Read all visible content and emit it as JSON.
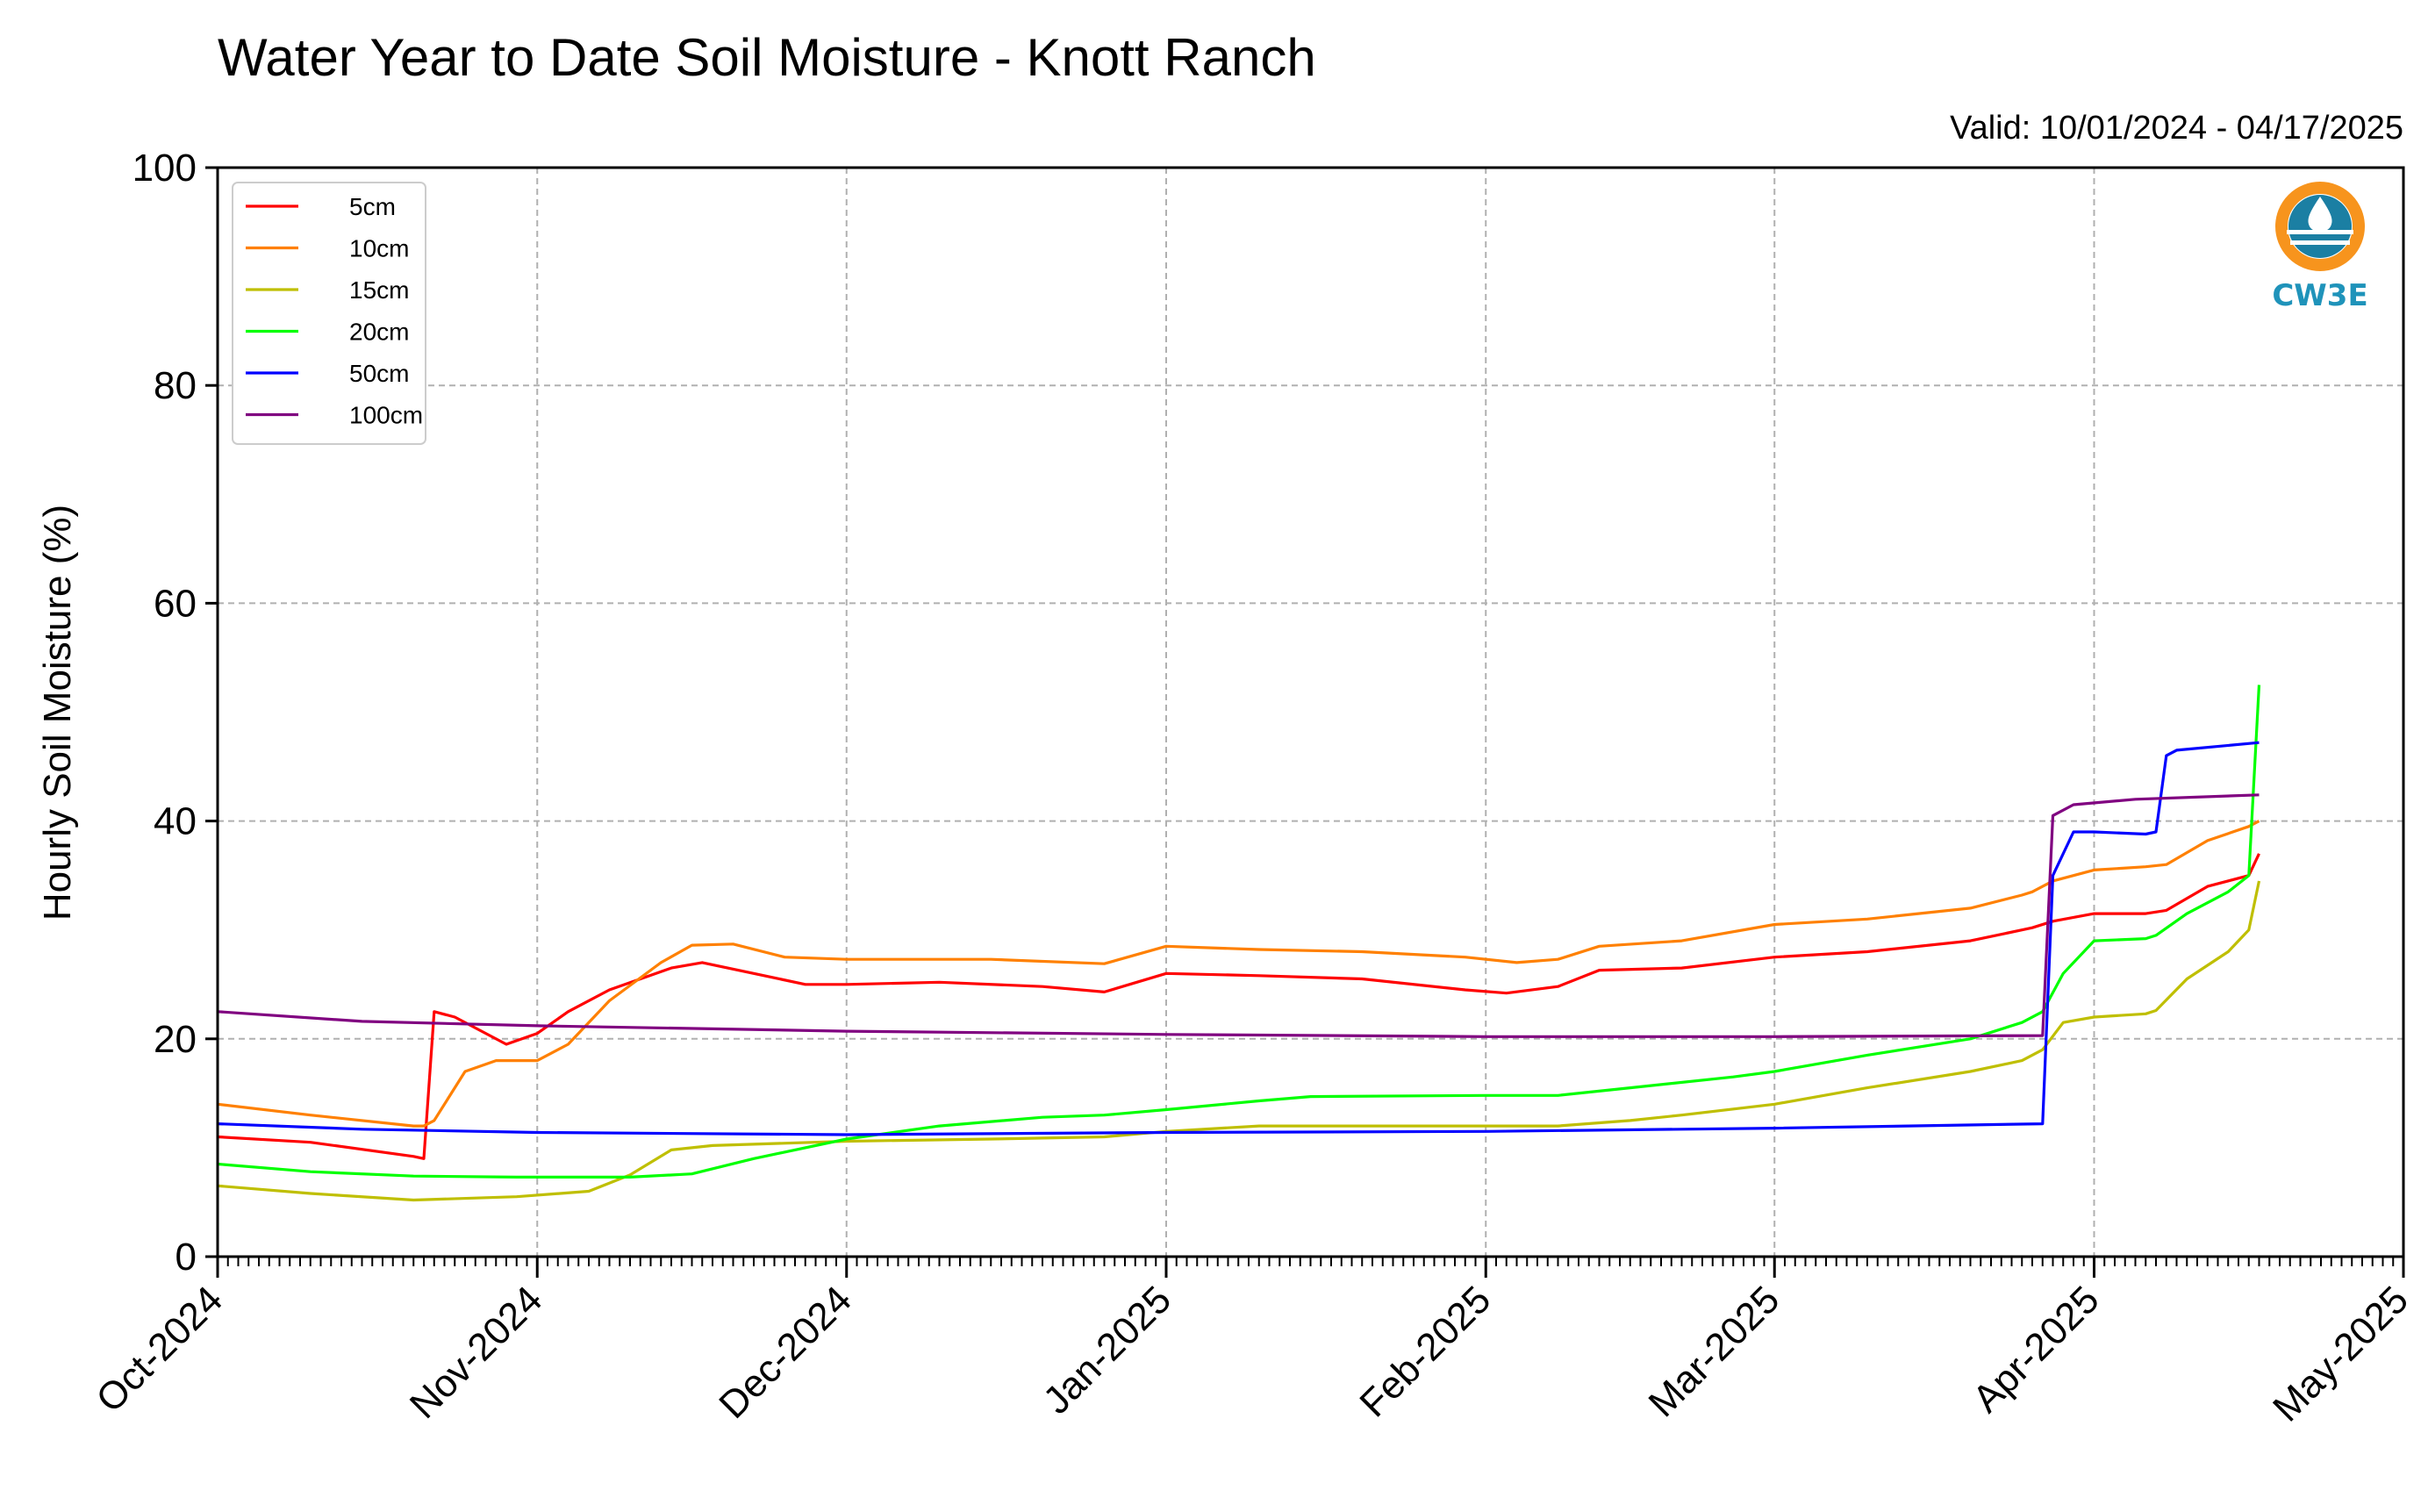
{
  "chart_data": {
    "type": "line",
    "title": "Water Year to Date Soil Moisture - Knott Ranch",
    "subtitle": "Valid: 10/01/2024 - 04/17/2025",
    "xlabel": "",
    "ylabel": "Hourly Soil Moisture (%)",
    "ylim": [
      0,
      100
    ],
    "xlim": [
      "2024-10-01",
      "2025-05-01"
    ],
    "yticks": [
      "0",
      "20",
      "40",
      "60",
      "80",
      "100"
    ],
    "xticks": [
      {
        "date": "2024-10-01",
        "label": "Oct-2024"
      },
      {
        "date": "2024-11-01",
        "label": "Nov-2024"
      },
      {
        "date": "2024-12-01",
        "label": "Dec-2024"
      },
      {
        "date": "2025-01-01",
        "label": "Jan-2025"
      },
      {
        "date": "2025-02-01",
        "label": "Feb-2025"
      },
      {
        "date": "2025-03-01",
        "label": "Mar-2025"
      },
      {
        "date": "2025-04-01",
        "label": "Apr-2025"
      },
      {
        "date": "2025-05-01",
        "label": "May-2025"
      }
    ],
    "grid": true,
    "legend_position": "top-left",
    "series": [
      {
        "name": "5cm",
        "color": "#ff0000",
        "x": [
          "2024-10-01",
          "2024-10-10",
          "2024-10-20",
          "2024-10-21",
          "2024-10-22",
          "2024-10-24",
          "2024-10-29",
          "2024-11-01",
          "2024-11-04",
          "2024-11-08",
          "2024-11-14",
          "2024-11-17",
          "2024-11-22",
          "2024-11-27",
          "2024-12-01",
          "2024-12-10",
          "2024-12-20",
          "2024-12-26",
          "2025-01-01",
          "2025-01-10",
          "2025-01-20",
          "2025-01-30",
          "2025-02-03",
          "2025-02-08",
          "2025-02-12",
          "2025-02-20",
          "2025-03-01",
          "2025-03-10",
          "2025-03-20",
          "2025-03-25",
          "2025-03-26",
          "2025-03-28",
          "2025-04-01",
          "2025-04-06",
          "2025-04-08",
          "2025-04-12",
          "2025-04-16",
          "2025-04-17"
        ],
        "values": [
          11,
          10.5,
          9.2,
          9,
          22.5,
          22,
          19.5,
          20.5,
          22.5,
          24.5,
          26.5,
          27,
          26,
          25,
          25,
          25.2,
          24.8,
          24.3,
          26,
          25.8,
          25.5,
          24.5,
          24.2,
          24.8,
          26.3,
          26.5,
          27.5,
          28,
          29,
          30,
          30.2,
          30.8,
          31.5,
          31.5,
          31.8,
          34,
          35,
          37
        ]
      },
      {
        "name": "10cm",
        "color": "#ff8000",
        "x": [
          "2024-10-01",
          "2024-10-10",
          "2024-10-20",
          "2024-10-21",
          "2024-10-22",
          "2024-10-25",
          "2024-10-28",
          "2024-11-01",
          "2024-11-04",
          "2024-11-08",
          "2024-11-13",
          "2024-11-16",
          "2024-11-20",
          "2024-11-25",
          "2024-12-01",
          "2024-12-15",
          "2024-12-26",
          "2025-01-01",
          "2025-01-10",
          "2025-01-20",
          "2025-01-30",
          "2025-02-04",
          "2025-02-08",
          "2025-02-12",
          "2025-02-20",
          "2025-03-01",
          "2025-03-10",
          "2025-03-20",
          "2025-03-25",
          "2025-03-26",
          "2025-03-28",
          "2025-04-01",
          "2025-04-06",
          "2025-04-08",
          "2025-04-12",
          "2025-04-16",
          "2025-04-17"
        ],
        "values": [
          14,
          13,
          12,
          12,
          12.5,
          17,
          18,
          18,
          19.5,
          23.5,
          27,
          28.6,
          28.7,
          27.5,
          27.3,
          27.3,
          26.9,
          28.5,
          28.2,
          28,
          27.5,
          27,
          27.3,
          28.5,
          29,
          30.5,
          31,
          32,
          33.2,
          33.5,
          34.5,
          35.5,
          35.8,
          36,
          38.2,
          39.5,
          40
        ]
      },
      {
        "name": "15cm",
        "color": "#bfbf00",
        "x": [
          "2024-10-01",
          "2024-10-10",
          "2024-10-20",
          "2024-10-30",
          "2024-11-06",
          "2024-11-10",
          "2024-11-14",
          "2024-11-18",
          "2024-12-01",
          "2024-12-15",
          "2024-12-26",
          "2025-01-01",
          "2025-01-10",
          "2025-01-20",
          "2025-02-01",
          "2025-02-08",
          "2025-02-15",
          "2025-02-20",
          "2025-03-01",
          "2025-03-10",
          "2025-03-20",
          "2025-03-25",
          "2025-03-27",
          "2025-03-29",
          "2025-04-01",
          "2025-04-06",
          "2025-04-07",
          "2025-04-10",
          "2025-04-14",
          "2025-04-16",
          "2025-04-17"
        ],
        "values": [
          6.5,
          5.8,
          5.2,
          5.5,
          6,
          7.5,
          9.8,
          10.2,
          10.6,
          10.8,
          11,
          11.5,
          12,
          12,
          12,
          12,
          12.5,
          13,
          14,
          15.5,
          17,
          18,
          19,
          21.5,
          22,
          22.3,
          22.6,
          25.5,
          28,
          30,
          34.5
        ]
      },
      {
        "name": "20cm",
        "color": "#00ff00",
        "x": [
          "2024-10-01",
          "2024-10-10",
          "2024-10-20",
          "2024-10-30",
          "2024-11-10",
          "2024-11-16",
          "2024-11-22",
          "2024-12-01",
          "2024-12-10",
          "2024-12-20",
          "2024-12-26",
          "2025-01-01",
          "2025-01-10",
          "2025-01-15",
          "2025-02-01",
          "2025-02-08",
          "2025-02-15",
          "2025-02-25",
          "2025-03-01",
          "2025-03-10",
          "2025-03-20",
          "2025-03-25",
          "2025-03-27",
          "2025-03-29",
          "2025-04-01",
          "2025-04-06",
          "2025-04-07",
          "2025-04-10",
          "2025-04-14",
          "2025-04-16",
          "2025-04-17"
        ],
        "values": [
          8.5,
          7.8,
          7.4,
          7.3,
          7.3,
          7.6,
          9,
          10.8,
          12,
          12.8,
          13,
          13.5,
          14.3,
          14.7,
          14.8,
          14.8,
          15.5,
          16.5,
          17,
          18.5,
          20,
          21.5,
          22.5,
          26,
          29,
          29.2,
          29.5,
          31.5,
          33.5,
          35,
          52.5
        ]
      },
      {
        "name": "50cm",
        "color": "#0000ff",
        "x": [
          "2024-10-01",
          "2024-10-15",
          "2024-11-01",
          "2024-12-01",
          "2025-01-01",
          "2025-02-01",
          "2025-03-01",
          "2025-03-27",
          "2025-03-28",
          "2025-03-30",
          "2025-04-01",
          "2025-04-06",
          "2025-04-07",
          "2025-04-08",
          "2025-04-09",
          "2025-04-17"
        ],
        "values": [
          12.2,
          11.7,
          11.4,
          11.2,
          11.4,
          11.5,
          11.8,
          12.2,
          35,
          39,
          39,
          38.8,
          39,
          46,
          46.5,
          47.2
        ]
      },
      {
        "name": "100cm",
        "color": "#800080",
        "x": [
          "2024-10-01",
          "2024-10-15",
          "2024-11-01",
          "2024-12-01",
          "2025-01-01",
          "2025-02-01",
          "2025-03-01",
          "2025-03-27",
          "2025-03-28",
          "2025-03-30",
          "2025-04-05",
          "2025-04-17"
        ],
        "values": [
          22.5,
          21.6,
          21.2,
          20.7,
          20.4,
          20.2,
          20.2,
          20.3,
          40.5,
          41.5,
          42,
          42.4
        ]
      }
    ]
  },
  "logo": {
    "text": "CW3E",
    "ring_color": "#f7941d",
    "wave_color": "#1b7fa3",
    "text_color": "#1f93ba"
  }
}
